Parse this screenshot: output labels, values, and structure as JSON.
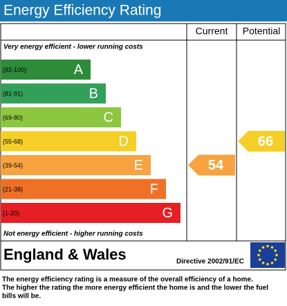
{
  "title": "Energy Efficiency Rating",
  "columns": {
    "current": "Current",
    "potential": "Potential"
  },
  "top_note": "Very energy efficient - lower running costs",
  "bottom_note": "Not energy efficient - higher running costs",
  "bands": [
    {
      "range": "(92-100)",
      "letter": "A",
      "color": "#2e8b3a"
    },
    {
      "range": "(81-91)",
      "letter": "B",
      "color": "#33a05a"
    },
    {
      "range": "(69-80)",
      "letter": "C",
      "color": "#8dc63f"
    },
    {
      "range": "(55-68)",
      "letter": "D",
      "color": "#f5cf27"
    },
    {
      "range": "(39-54)",
      "letter": "E",
      "color": "#f7a340"
    },
    {
      "range": "(21-38)",
      "letter": "F",
      "color": "#f07026"
    },
    {
      "range": "(1-20)",
      "letter": "G",
      "color": "#e51f24"
    }
  ],
  "current": 54,
  "potential": 66,
  "region": "England & Wales",
  "directive": "Directive 2002/91/EC",
  "footer": [
    "The energy efficiency rating is a measure of the overall efficiency of a home.",
    "The higher the rating the more energy efficient the home is and the lower the fuel",
    "bills will be."
  ]
}
